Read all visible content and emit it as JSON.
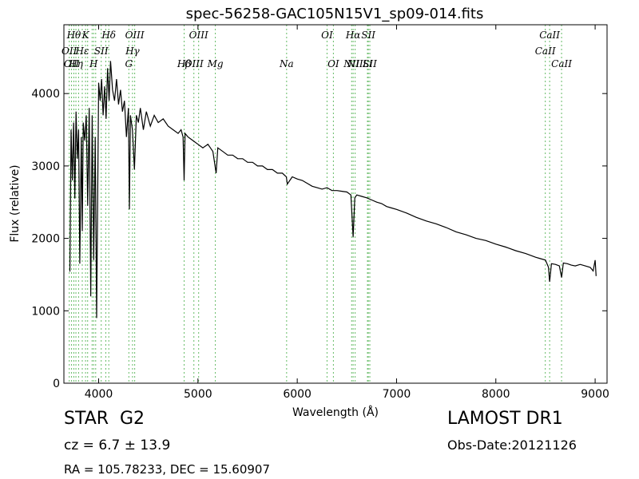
{
  "chart_data": {
    "type": "line",
    "title": "spec-56258-GAC105N15V1_sp09-014.fits",
    "xlabel": "Wavelength (Å)",
    "ylabel": "Flux (relative)",
    "xlim": [
      3650,
      9120
    ],
    "ylim": [
      0,
      4950
    ],
    "xticks": [
      4000,
      5000,
      6000,
      7000,
      8000,
      9000
    ],
    "yticks": [
      0,
      1000,
      2000,
      3000,
      4000
    ],
    "grid": false,
    "legend": "none",
    "line_color": "#000000",
    "marker_color": "#66bb66",
    "series": [
      {
        "x": [
          3710,
          3722,
          3735,
          3748,
          3760,
          3772,
          3785,
          3798,
          3810,
          3825,
          3835,
          3845,
          3860,
          3875,
          3890,
          3905,
          3920,
          3935,
          3950,
          3965,
          3980,
          4000,
          4015,
          4030,
          4045,
          4060,
          4075,
          4090,
          4105,
          4120,
          4140,
          4160,
          4180,
          4200,
          4220,
          4240,
          4260,
          4280,
          4300,
          4310,
          4320,
          4340,
          4360,
          4380,
          4400,
          4420,
          4450,
          4480,
          4520,
          4560,
          4600,
          4650,
          4700,
          4750,
          4800,
          4830,
          4850,
          4861,
          4870,
          4900,
          4950,
          5000,
          5050,
          5100,
          5150,
          5183,
          5200,
          5250,
          5300,
          5350,
          5400,
          5450,
          5500,
          5550,
          5600,
          5650,
          5700,
          5750,
          5800,
          5850,
          5890,
          5900,
          5950,
          6000,
          6050,
          6100,
          6150,
          6200,
          6250,
          6300,
          6350,
          6400,
          6450,
          6500,
          6540,
          6563,
          6580,
          6600,
          6650,
          6700,
          6750,
          6800,
          6850,
          6900,
          6950,
          7000,
          7100,
          7200,
          7300,
          7400,
          7500,
          7600,
          7700,
          7800,
          7900,
          8000,
          8100,
          8200,
          8300,
          8400,
          8450,
          8500,
          8530,
          8542,
          8560,
          8600,
          8640,
          8662,
          8680,
          8720,
          8760,
          8800,
          8850,
          8900,
          8950,
          8980,
          9000,
          9010
        ],
        "y": [
          1540,
          3500,
          2800,
          3600,
          2550,
          3750,
          3100,
          3500,
          1650,
          3400,
          2100,
          3600,
          3350,
          3700,
          2450,
          3800,
          1200,
          3700,
          1700,
          3400,
          900,
          4150,
          3900,
          4200,
          3700,
          4100,
          3650,
          4350,
          3900,
          4450,
          4050,
          3900,
          4200,
          3850,
          4050,
          3750,
          3900,
          3400,
          3800,
          2400,
          3700,
          3500,
          2950,
          3700,
          3600,
          3800,
          3500,
          3750,
          3550,
          3700,
          3600,
          3650,
          3550,
          3500,
          3450,
          3500,
          3400,
          2800,
          3450,
          3400,
          3350,
          3300,
          3250,
          3300,
          3200,
          2900,
          3250,
          3200,
          3150,
          3150,
          3100,
          3100,
          3050,
          3050,
          3000,
          3000,
          2950,
          2950,
          2900,
          2900,
          2850,
          2750,
          2850,
          2820,
          2800,
          2760,
          2720,
          2700,
          2680,
          2700,
          2660,
          2660,
          2650,
          2640,
          2600,
          2020,
          2560,
          2600,
          2580,
          2560,
          2530,
          2500,
          2480,
          2440,
          2420,
          2400,
          2350,
          2290,
          2240,
          2200,
          2150,
          2090,
          2050,
          2000,
          1970,
          1920,
          1880,
          1830,
          1790,
          1740,
          1720,
          1700,
          1600,
          1400,
          1650,
          1640,
          1620,
          1460,
          1660,
          1650,
          1630,
          1620,
          1640,
          1620,
          1600,
          1550,
          1700,
          1480
        ]
      }
    ],
    "lines": [
      {
        "x": 3704,
        "label": "OII",
        "row": 2
      },
      {
        "x": 3727,
        "label": "OII",
        "row": 3
      },
      {
        "x": 3750,
        "label": "Hθ",
        "row": 1
      },
      {
        "x": 3771,
        "label": "Hη",
        "row": 3
      },
      {
        "x": 3798,
        "label": "",
        "row": 0
      },
      {
        "x": 3835,
        "label": "Hε",
        "row": 2
      },
      {
        "x": 3868,
        "label": "K",
        "row": 1
      },
      {
        "x": 3889,
        "label": "",
        "row": 0
      },
      {
        "x": 3934,
        "label": "",
        "row": 0
      },
      {
        "x": 3950,
        "label": "H",
        "row": 3
      },
      {
        "x": 3970,
        "label": "",
        "row": 0
      },
      {
        "x": 4026,
        "label": "SII",
        "row": 2
      },
      {
        "x": 4072,
        "label": "",
        "row": 0
      },
      {
        "x": 4102,
        "label": "Hδ",
        "row": 1
      },
      {
        "x": 4304,
        "label": "G",
        "row": 4
      },
      {
        "x": 4341,
        "label": "Hγ",
        "row": 2
      },
      {
        "x": 4363,
        "label": "OIII",
        "row": 1
      },
      {
        "x": 4861,
        "label": "Hβ",
        "row": 4
      },
      {
        "x": 4959,
        "label": "OIII",
        "row": 3
      },
      {
        "x": 5007,
        "label": "OIII",
        "row": 1
      },
      {
        "x": 5175,
        "label": "Mg",
        "row": 4
      },
      {
        "x": 5893,
        "label": "Na",
        "row": 3
      },
      {
        "x": 6300,
        "label": "OI",
        "row": 1
      },
      {
        "x": 6364,
        "label": "OI",
        "row": 4
      },
      {
        "x": 6548,
        "label": "NII",
        "row": 3
      },
      {
        "x": 6563,
        "label": "Hα",
        "row": 1
      },
      {
        "x": 6583,
        "label": "NII",
        "row": 4
      },
      {
        "x": 6707,
        "label": "Li",
        "row": 3
      },
      {
        "x": 6716,
        "label": "SII",
        "row": 1
      },
      {
        "x": 6731,
        "label": "SII",
        "row": 4
      },
      {
        "x": 8498,
        "label": "CaII",
        "row": 2
      },
      {
        "x": 8542,
        "label": "CaII",
        "row": 1
      },
      {
        "x": 8662,
        "label": "CaII",
        "row": 4
      }
    ]
  },
  "footer": {
    "class": "STAR",
    "subclass": "G2",
    "survey": "LAMOST DR1",
    "redshift": "cz = 6.7 ± 13.9",
    "obsdate": "Obs-Date:20121126",
    "coords": "RA = 105.78233, DEC = 15.60907"
  }
}
